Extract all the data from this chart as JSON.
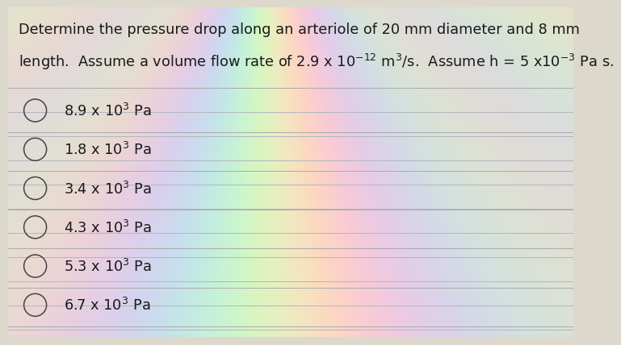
{
  "background_color": "#ddd8cc",
  "question_line1": "Determine the pressure drop along an arteriole of 20 mm diameter and 8 mm",
  "question_line2": "length.  Assume a volume flow rate of 2.9 x 10$^{-12}$ m$^{3}$/s.  Assume h = 5 x10$^{-3}$ Pa s.",
  "options_raw": [
    [
      "8.9 x 10",
      "3",
      " Pa"
    ],
    [
      "1.8 x 10",
      "3",
      " Pa"
    ],
    [
      "3.4 x 10",
      "3",
      " Pa"
    ],
    [
      "4.3 x 10",
      "3",
      " Pa"
    ],
    [
      "5.3 x 10",
      "3",
      " Pa"
    ],
    [
      "6.7 x 10",
      "3",
      " Pa"
    ]
  ],
  "text_color": "#1a1a1a",
  "line_color": "#aaaaaa",
  "circle_color": "#444444",
  "font_size_question": 12.8,
  "font_size_options": 12.8
}
